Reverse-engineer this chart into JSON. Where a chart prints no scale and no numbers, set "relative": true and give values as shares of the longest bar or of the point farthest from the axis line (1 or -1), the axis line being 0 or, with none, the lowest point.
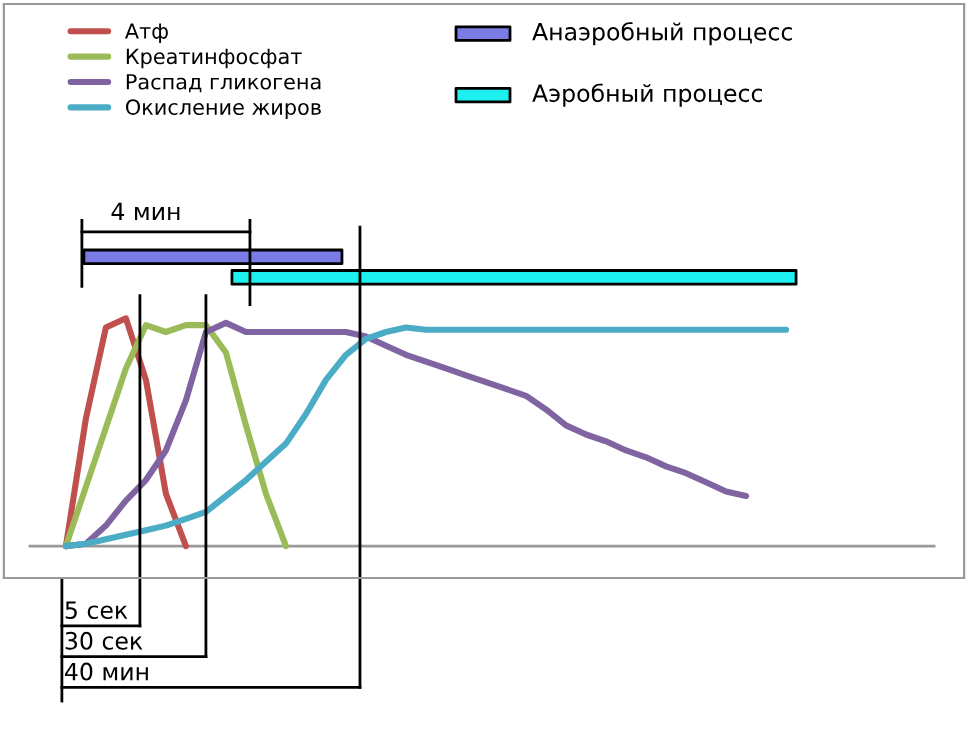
{
  "chart_data": {
    "type": "line",
    "relative": true,
    "legend": "top left",
    "categories": [
      null,
      null,
      null,
      null,
      null,
      null,
      null,
      null,
      null,
      null,
      null,
      null,
      null,
      null,
      null,
      null,
      null,
      null,
      null,
      null,
      null,
      null,
      null,
      null,
      null,
      null,
      null,
      null,
      null,
      null,
      null,
      null,
      null,
      null,
      null,
      null,
      null
    ],
    "series": [
      {
        "name": "Атф",
        "color": "#c0504d",
        "values": [
          0,
          0.56,
          0.96,
          1,
          0.73,
          0.23,
          0,
          null,
          null,
          null,
          null,
          null,
          null,
          null,
          null,
          null,
          null,
          null,
          null,
          null,
          null,
          null,
          null,
          null,
          null,
          null,
          null,
          null,
          null,
          null,
          null,
          null,
          null,
          null,
          null,
          null,
          null
        ]
      },
      {
        "name": "Креатинфосфат",
        "color": "#9bbb59",
        "values": [
          0,
          0.26,
          0.52,
          0.78,
          0.97,
          0.94,
          0.97,
          0.97,
          0.85,
          0.53,
          0.23,
          0,
          null,
          null,
          null,
          null,
          null,
          null,
          null,
          null,
          null,
          null,
          null,
          null,
          null,
          null,
          null,
          null,
          null,
          null,
          null,
          null,
          null,
          null,
          null,
          null,
          null
        ]
      },
      {
        "name": "Распад гликогена",
        "color": "#8064a2",
        "values": [
          0,
          0.01,
          0.09,
          0.2,
          0.29,
          0.42,
          0.64,
          0.94,
          0.98,
          0.94,
          0.94,
          0.94,
          0.94,
          0.94,
          0.94,
          0.92,
          0.88,
          0.84,
          0.81,
          0.78,
          0.75,
          0.72,
          0.69,
          0.66,
          0.6,
          0.53,
          0.49,
          0.46,
          0.42,
          0.39,
          0.35,
          0.32,
          0.28,
          0.24,
          0.22,
          null,
          null
        ]
      },
      {
        "name": "Окисление жиров",
        "color": "#4bacc6",
        "values": [
          0,
          0.01,
          0.03,
          0.05,
          0.07,
          0.09,
          0.12,
          0.15,
          0.22,
          0.29,
          0.37,
          0.45,
          0.58,
          0.73,
          0.84,
          0.91,
          0.94,
          0.96,
          0.95,
          0.95,
          0.95,
          0.95,
          0.95,
          0.95,
          0.95,
          0.95,
          0.95,
          0.95,
          0.95,
          0.95,
          0.95,
          0.95,
          0.95,
          0.95,
          0.95,
          0.95,
          0.95
        ]
      }
    ],
    "annotations": [
      "4 мин",
      "Анаэробный процесс",
      "Аэробный процесс",
      "5 сек",
      "30 сек",
      "40 мин"
    ]
  }
}
